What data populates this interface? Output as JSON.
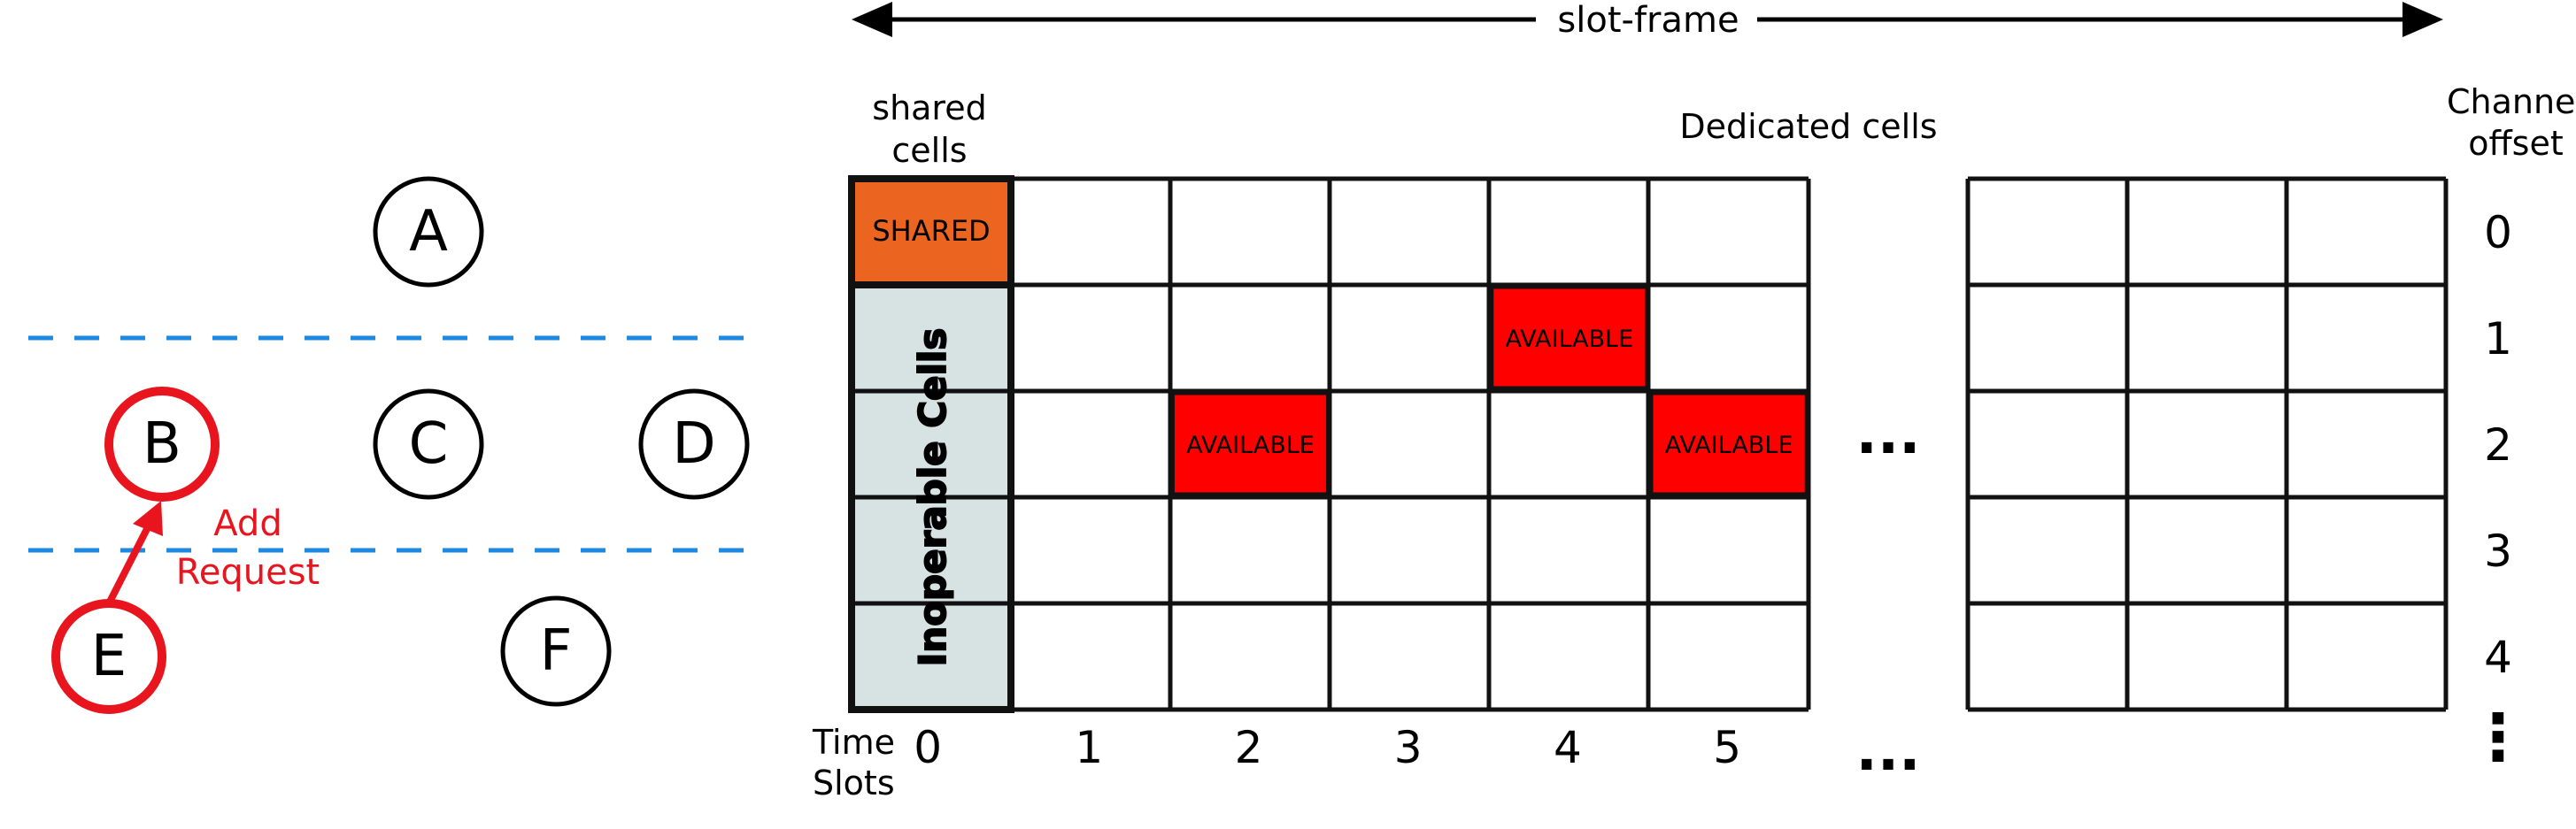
{
  "topology": {
    "nodes": [
      {
        "id": "A",
        "label": "A",
        "highlighted": false
      },
      {
        "id": "B",
        "label": "B",
        "highlighted": true
      },
      {
        "id": "C",
        "label": "C",
        "highlighted": false
      },
      {
        "id": "D",
        "label": "D",
        "highlighted": false
      },
      {
        "id": "E",
        "label": "E",
        "highlighted": true
      },
      {
        "id": "F",
        "label": "F",
        "highlighted": false
      }
    ],
    "request_label_line1": "Add",
    "request_label_line2": "Request",
    "divider_color": "#1e88e5",
    "highlight_color": "#e8141e"
  },
  "schedule": {
    "slotframe_label": "slot-frame",
    "shared_header_line1": "shared",
    "shared_header_line2": "cells",
    "dedicated_header": "Dedicated cells",
    "channel_header_line1": "Channel",
    "channel_header_line2": "offset",
    "shared_cell_label": "SHARED",
    "inoperable_label": "Inoperable Cells",
    "available_label": "AVAILABLE",
    "time_header_line1": "Time",
    "time_header_line2": "Slots",
    "time_slots": [
      "0",
      "1",
      "2",
      "3",
      "4",
      "5"
    ],
    "channel_offsets": [
      "0",
      "1",
      "2",
      "3",
      "4"
    ],
    "ellipsis": "...",
    "vertical_ellipsis": "⋮",
    "available_cells": [
      {
        "slot": 4,
        "channel": 1
      },
      {
        "slot": 2,
        "channel": 2
      },
      {
        "slot": 5,
        "channel": 2
      }
    ],
    "colors": {
      "shared": "#eb6420",
      "inoperable": "#d7e3e3",
      "available": "#ff0000",
      "grid": "#111111"
    }
  }
}
